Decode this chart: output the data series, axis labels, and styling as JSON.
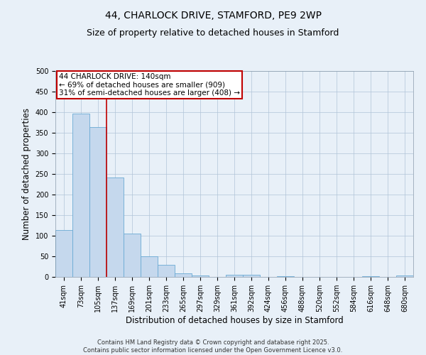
{
  "title_line1": "44, CHARLOCK DRIVE, STAMFORD, PE9 2WP",
  "title_line2": "Size of property relative to detached houses in Stamford",
  "xlabel": "Distribution of detached houses by size in Stamford",
  "ylabel": "Number of detached properties",
  "categories": [
    "41sqm",
    "73sqm",
    "105sqm",
    "137sqm",
    "169sqm",
    "201sqm",
    "233sqm",
    "265sqm",
    "297sqm",
    "329sqm",
    "361sqm",
    "392sqm",
    "424sqm",
    "456sqm",
    "488sqm",
    "520sqm",
    "552sqm",
    "584sqm",
    "616sqm",
    "648sqm",
    "680sqm"
  ],
  "values": [
    113,
    397,
    363,
    242,
    106,
    50,
    30,
    8,
    4,
    0,
    6,
    6,
    0,
    2,
    0,
    0,
    0,
    0,
    2,
    0,
    4
  ],
  "bar_color": "#c5d8ed",
  "bar_edge_color": "#6aaad4",
  "vline_color": "#c00000",
  "vline_x_index": 3,
  "annotation_text": "44 CHARLOCK DRIVE: 140sqm\n← 69% of detached houses are smaller (909)\n31% of semi-detached houses are larger (408) →",
  "annotation_box_color": "#ffffff",
  "annotation_box_edge_color": "#c00000",
  "ylim": [
    0,
    500
  ],
  "yticks": [
    0,
    50,
    100,
    150,
    200,
    250,
    300,
    350,
    400,
    450,
    500
  ],
  "grid_color": "#b0c4d8",
  "bg_color": "#e8f0f8",
  "plot_bg_color": "#e8f0f8",
  "footer_text": "Contains HM Land Registry data © Crown copyright and database right 2025.\nContains public sector information licensed under the Open Government Licence v3.0.",
  "title_fontsize": 10,
  "subtitle_fontsize": 9,
  "tick_fontsize": 7,
  "label_fontsize": 8.5,
  "annotation_fontsize": 7.5,
  "footer_fontsize": 6
}
